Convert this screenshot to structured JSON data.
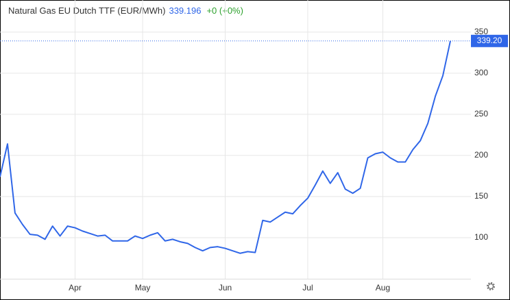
{
  "chart_data": {
    "type": "line",
    "title": "Natural Gas EU Dutch TTF (EUR/MWh)",
    "price": 339.196,
    "change": "+0 (+0%)",
    "categories": [
      null,
      null,
      null,
      null,
      null,
      null,
      null,
      null,
      null,
      null,
      "Apr",
      null,
      null,
      null,
      null,
      null,
      null,
      null,
      null,
      "May",
      null,
      null,
      null,
      null,
      null,
      null,
      null,
      null,
      null,
      null,
      "Jun",
      null,
      null,
      null,
      null,
      null,
      null,
      null,
      null,
      null,
      null,
      "Jul",
      null,
      null,
      null,
      null,
      null,
      null,
      null,
      null,
      null,
      "Aug",
      null,
      null,
      null,
      null,
      null,
      null,
      null,
      null,
      null
    ],
    "series": [
      {
        "name": "Natural Gas EU Dutch TTF",
        "color": "#2f66e8",
        "values": [
          174,
          214,
          130,
          116,
          104,
          103,
          98,
          114,
          102,
          114,
          112,
          108,
          105,
          102,
          103,
          96,
          96,
          96,
          102,
          99,
          103,
          106,
          96,
          98,
          95,
          93,
          88,
          84,
          88,
          89,
          87,
          84,
          81,
          83,
          82,
          121,
          119,
          125,
          131,
          129,
          139,
          148,
          164,
          181,
          166,
          179,
          159,
          154,
          160,
          197,
          202,
          204,
          197,
          192,
          192,
          207,
          218,
          239,
          272,
          297,
          339.196
        ],
        "value_labels": [
          null,
          null,
          null,
          null,
          null,
          null,
          null,
          null,
          null,
          null,
          null,
          null,
          null,
          null,
          null,
          null,
          null,
          null,
          null,
          null,
          null,
          null,
          null,
          null,
          null,
          null,
          null,
          null,
          null,
          null,
          null,
          null,
          null,
          null,
          null,
          null,
          null,
          null,
          null,
          null,
          null,
          null,
          null,
          null,
          null,
          null,
          null,
          null,
          null,
          null,
          null,
          null,
          null,
          null,
          null,
          null,
          null,
          null,
          null,
          null,
          "339.20"
        ]
      }
    ],
    "ylim": [
      50,
      389
    ],
    "yticks": [
      100,
      150,
      200,
      250,
      300,
      350
    ],
    "grid": true
  }
}
